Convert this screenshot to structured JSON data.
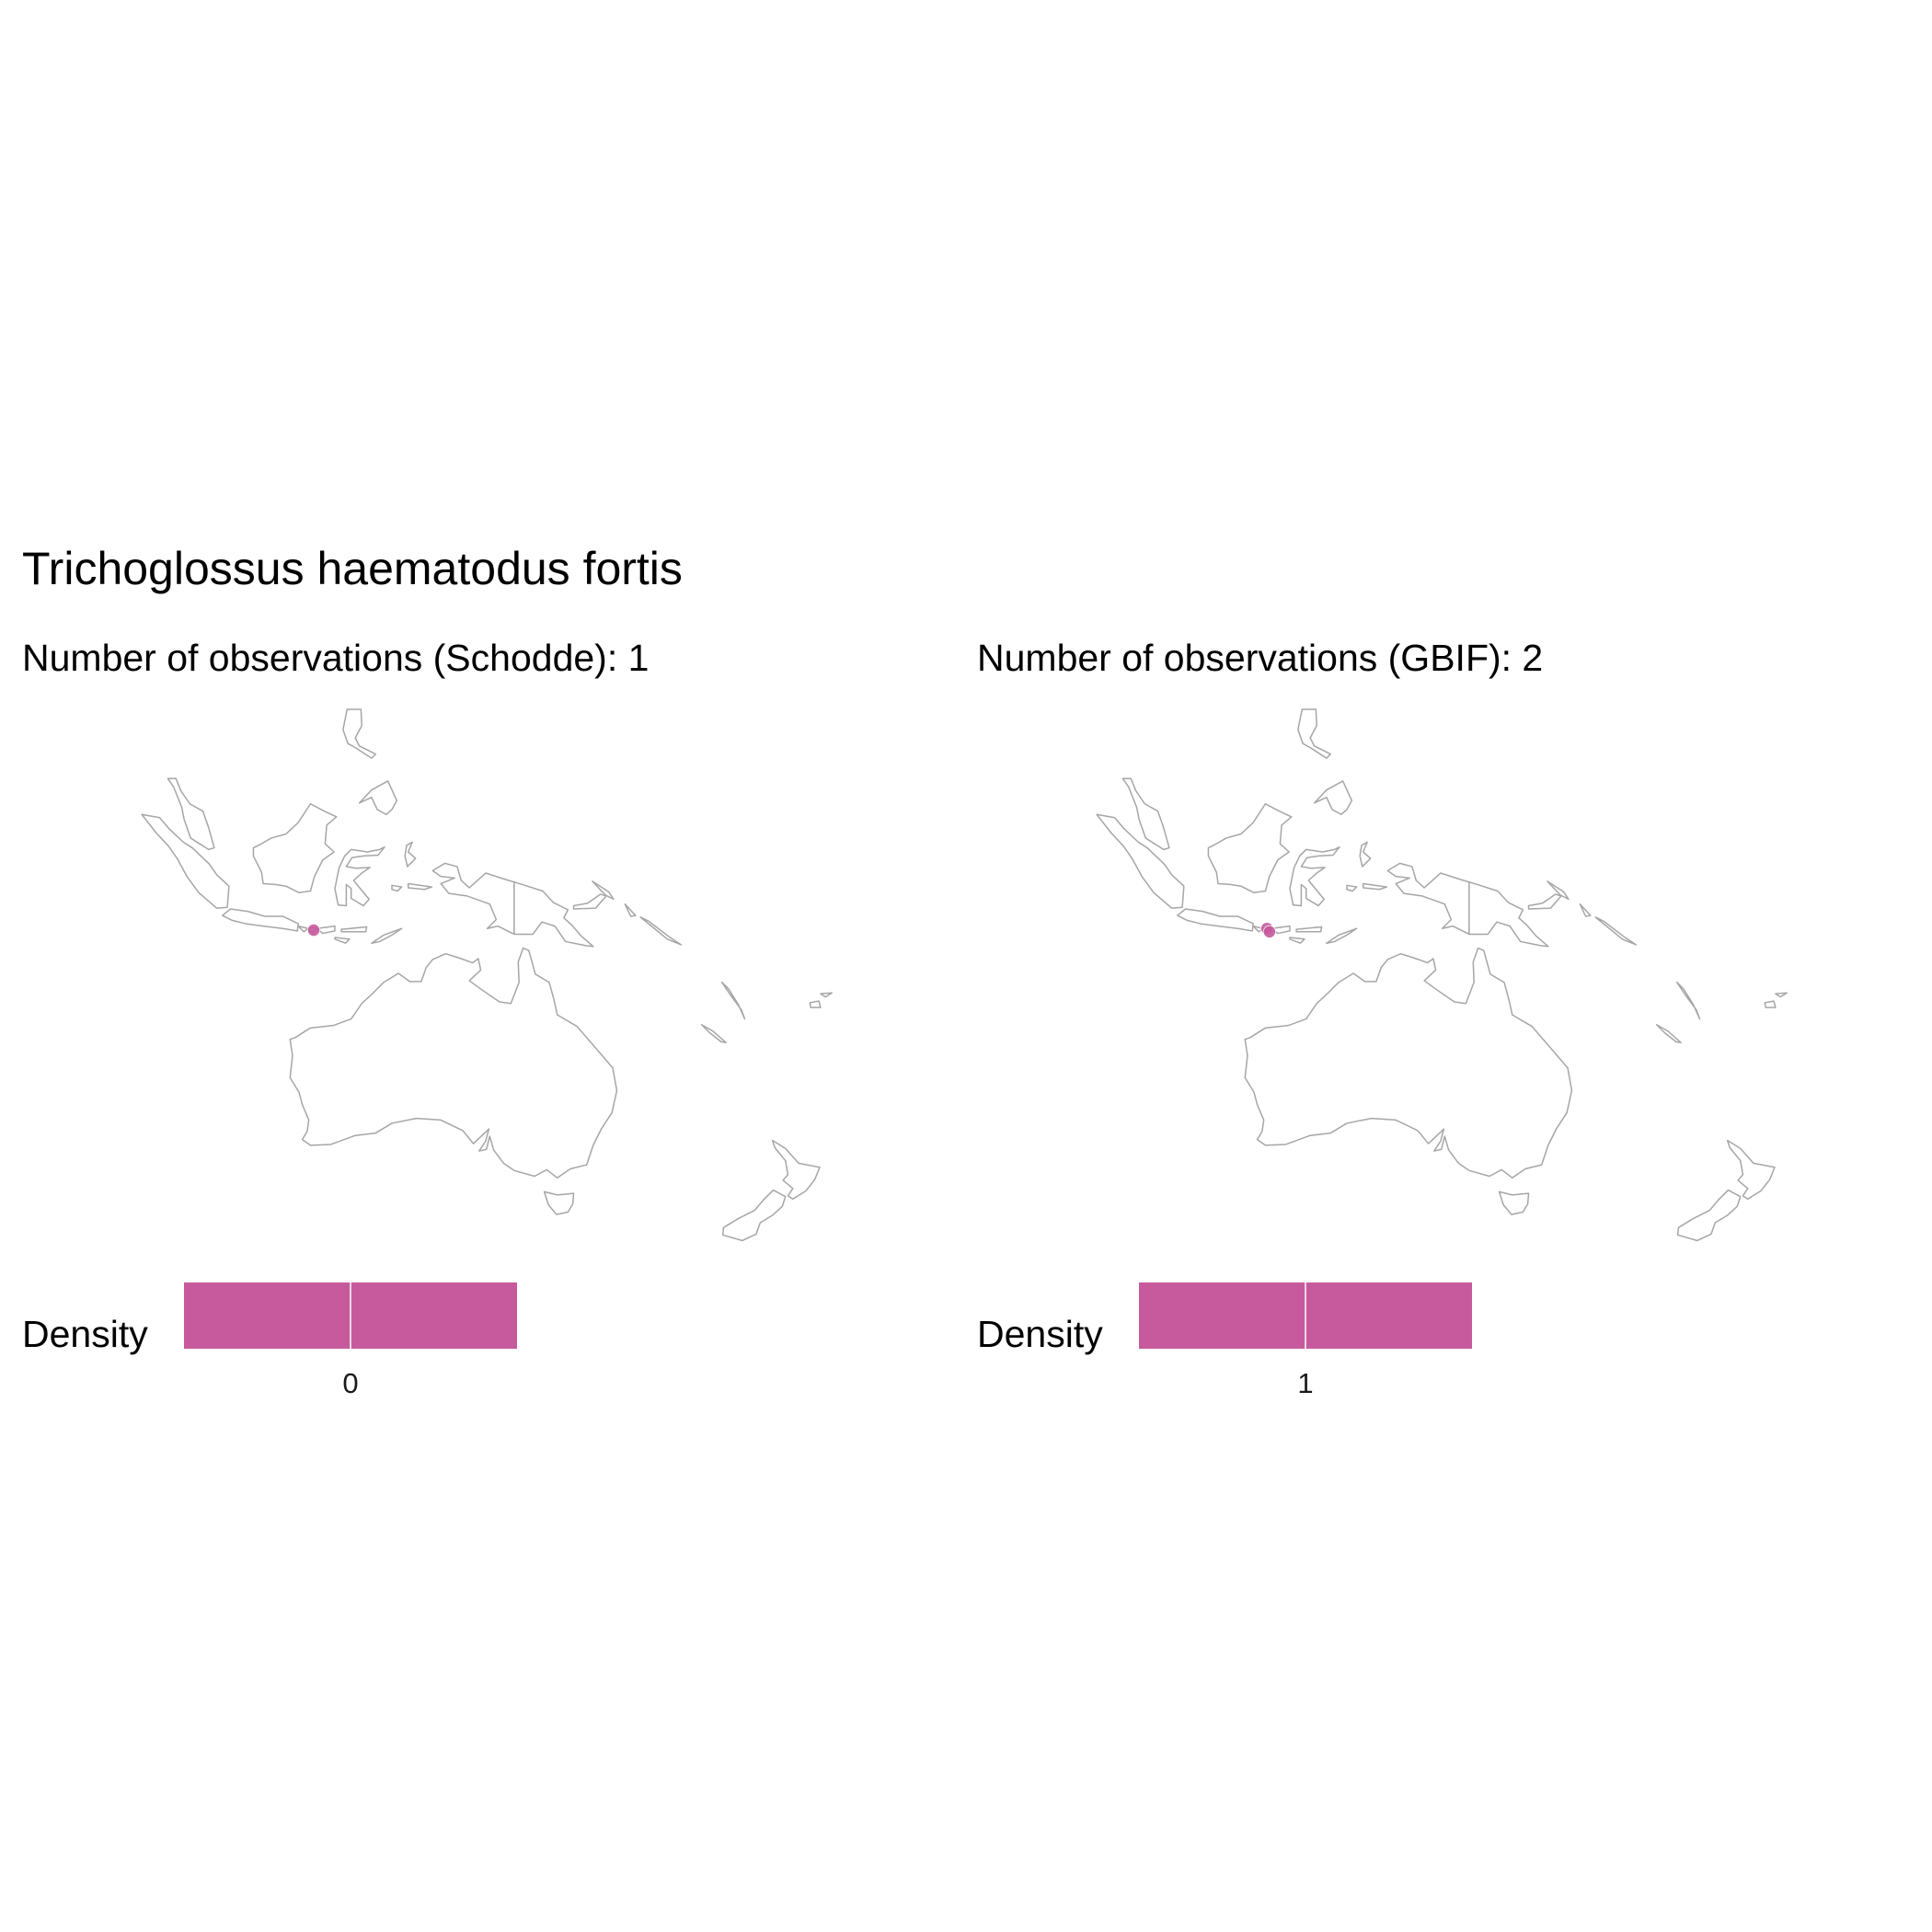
{
  "title": "Trichoglossus haematodus fortis",
  "colors": {
    "density": "#c75a9c",
    "coastline": "#a6a6a6",
    "background": "#ffffff"
  },
  "panels": [
    {
      "subtitle": "Number of observations (Schodde): 1",
      "legend": {
        "title": "Density",
        "tick_label": "0"
      },
      "observations": [
        {
          "lon": 116.4,
          "lat": -8.6
        }
      ]
    },
    {
      "subtitle": "Number of observations (GBIF): 2",
      "legend": {
        "title": "Density",
        "tick_label": "1"
      },
      "observations": [
        {
          "lon": 116.2,
          "lat": -8.4
        },
        {
          "lon": 116.5,
          "lat": -8.8
        }
      ]
    }
  ]
}
